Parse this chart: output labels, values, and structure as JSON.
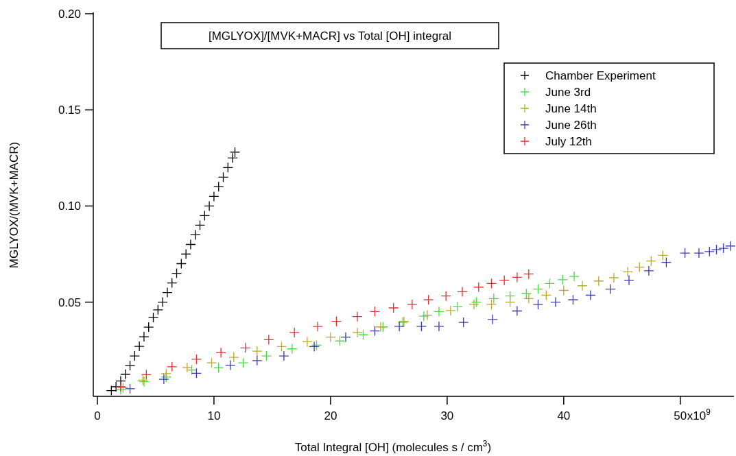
{
  "chart_data": {
    "type": "scatter",
    "title": "[MGLYOX]/[MVK+MACR] vs Total [OH] integral",
    "xlabel": "Total Integral [OH] (molecules s / cm$^{3}$)",
    "ylabel": "MGLYOX/(MVK+MACR)",
    "xlim": [
      -0.35,
      54.6
    ],
    "ylim": [
      0.001,
      0.2
    ],
    "xticks": [
      0,
      10,
      20,
      30,
      40,
      50
    ],
    "annotations": [
      "x10$^{9}$"
    ],
    "yticks": [
      {
        "value": 0.05,
        "label": "0.05"
      },
      {
        "value": 0.1,
        "label": "0.10"
      },
      {
        "value": 0.15,
        "label": "0.15"
      },
      {
        "value": 0.2,
        "label": "0.20"
      }
    ],
    "grid": false,
    "legend": "top right",
    "marker": "cross",
    "series": [
      {
        "name": "Chamber Experiment",
        "color": "#000000",
        "x": [
          1.2,
          1.6,
          2.0,
          2.4,
          2.8,
          3.2,
          3.6,
          4.0,
          4.4,
          4.8,
          5.2,
          5.6,
          6.0,
          6.4,
          6.8,
          7.2,
          7.6,
          8.0,
          8.4,
          8.8,
          9.2,
          9.6,
          10.0,
          10.4,
          10.8,
          11.2,
          11.6,
          11.8
        ],
        "values": [
          0.004,
          0.006,
          0.009,
          0.0125,
          0.017,
          0.022,
          0.027,
          0.032,
          0.037,
          0.042,
          0.046,
          0.05,
          0.055,
          0.06,
          0.065,
          0.07,
          0.075,
          0.08,
          0.085,
          0.09,
          0.095,
          0.1,
          0.105,
          0.11,
          0.115,
          0.12,
          0.125,
          0.128
        ]
      },
      {
        "name": "June 3rd",
        "color": "#44dd44",
        "x": [
          2.0,
          4.0,
          5.9,
          8.1,
          10.4,
          12.5,
          14.5,
          16.7,
          18.8,
          20.8,
          22.8,
          24.5,
          26.2,
          28.0,
          29.3,
          30.9,
          32.5,
          34.0,
          35.4,
          36.8,
          37.8,
          38.8,
          39.9,
          40.9
        ],
        "values": [
          0.0045,
          0.0086,
          0.011,
          0.0147,
          0.0159,
          0.0184,
          0.022,
          0.0257,
          0.0276,
          0.0298,
          0.033,
          0.0371,
          0.0395,
          0.0427,
          0.0451,
          0.0476,
          0.05,
          0.0519,
          0.0532,
          0.0544,
          0.0568,
          0.0597,
          0.0617,
          0.0634
        ]
      },
      {
        "name": "June 14th",
        "color": "#b8a830",
        "x": [
          2.2,
          3.9,
          5.9,
          7.7,
          9.8,
          11.7,
          13.7,
          15.8,
          18.0,
          20.0,
          22.3,
          24.3,
          26.3,
          28.3,
          30.3,
          32.3,
          33.8,
          35.4,
          37.0,
          38.5,
          40.0,
          41.6,
          43.0,
          44.3,
          45.5,
          46.5,
          47.5,
          48.5
        ],
        "values": [
          0.0055,
          0.0094,
          0.0128,
          0.016,
          0.0184,
          0.0213,
          0.0245,
          0.0269,
          0.0294,
          0.0318,
          0.0342,
          0.0371,
          0.04,
          0.0432,
          0.0456,
          0.0488,
          0.0488,
          0.05,
          0.0519,
          0.0536,
          0.0561,
          0.0585,
          0.061,
          0.0627,
          0.0658,
          0.0682,
          0.0714,
          0.0743
        ]
      },
      {
        "name": "June 26th",
        "color": "#3a3aaa",
        "x": [
          2.8,
          5.7,
          8.5,
          11.4,
          13.7,
          16.0,
          18.6,
          21.3,
          23.8,
          25.9,
          27.8,
          29.3,
          31.4,
          33.9,
          36.0,
          37.8,
          39.3,
          40.8,
          42.3,
          44.0,
          45.6,
          47.3,
          48.8,
          50.4,
          51.6,
          52.5,
          53.1,
          53.7,
          54.3
        ],
        "values": [
          0.005,
          0.0099,
          0.013,
          0.0172,
          0.0196,
          0.022,
          0.0269,
          0.0318,
          0.035,
          0.0374,
          0.0374,
          0.0374,
          0.0395,
          0.041,
          0.0454,
          0.0488,
          0.05,
          0.0512,
          0.0536,
          0.0568,
          0.0614,
          0.0663,
          0.0707,
          0.0755,
          0.0755,
          0.0763,
          0.0773,
          0.078,
          0.0792
        ]
      },
      {
        "name": "July 12th",
        "color": "#dd3333",
        "x": [
          2.0,
          4.2,
          6.4,
          8.5,
          10.6,
          12.7,
          14.7,
          16.9,
          18.9,
          20.5,
          22.3,
          23.8,
          25.4,
          27.0,
          28.4,
          29.9,
          31.3,
          32.7,
          33.8,
          34.9,
          36.0,
          37.0
        ],
        "values": [
          0.006,
          0.0123,
          0.0164,
          0.0203,
          0.0237,
          0.0262,
          0.0305,
          0.0342,
          0.0373,
          0.04,
          0.0425,
          0.0451,
          0.047,
          0.0488,
          0.0512,
          0.0532,
          0.0554,
          0.0578,
          0.0597,
          0.0614,
          0.0629,
          0.0646
        ]
      }
    ]
  }
}
